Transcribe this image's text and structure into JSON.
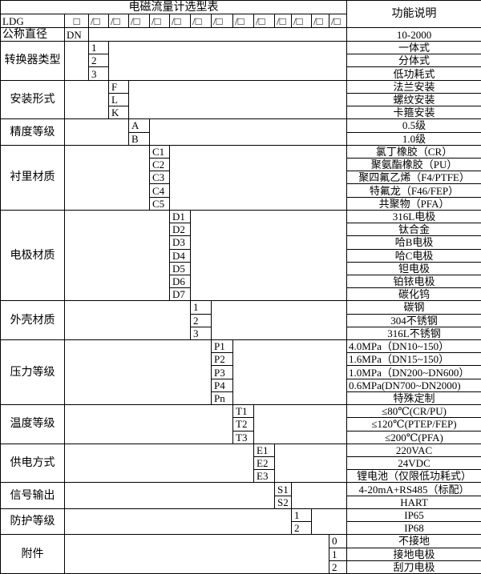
{
  "title": "电磁流量计选型表",
  "desc_header": "功能说明",
  "model_row": {
    "prefix": "LDG",
    "first_box": "□",
    "boxes": [
      "/□",
      "/□",
      "/□",
      "/□",
      "/□",
      "/□",
      "/□",
      "/□",
      "/□",
      "/□",
      "/□",
      "/□",
      "/□"
    ]
  },
  "diameter": {
    "label": "公称直径",
    "code": "DN",
    "desc": "10-2000"
  },
  "groups": [
    {
      "label": "转换器类型",
      "col": 2,
      "codes": [
        "1",
        "2",
        "3"
      ],
      "descs": [
        "一体式",
        "分体式",
        "低功耗式"
      ]
    },
    {
      "label": "安装形式",
      "col": 3,
      "codes": [
        "F",
        "L",
        "K"
      ],
      "descs": [
        "法兰安装",
        "螺纹安装",
        "卡箍安装"
      ]
    },
    {
      "label": "精度等级",
      "col": 4,
      "codes": [
        "A",
        "B"
      ],
      "descs": [
        "0.5级",
        "1.0级"
      ]
    },
    {
      "label": "衬里材质",
      "col": 5,
      "codes": [
        "C1",
        "C2",
        "C3",
        "C4",
        "C5"
      ],
      "descs": [
        "氯丁橡胶（CR）",
        "聚氨酯橡胶（PU）",
        "聚四氟乙烯（F4/PTFE）",
        "特氟龙（F46/FEP）",
        "共聚物（PFA）"
      ]
    },
    {
      "label": "电极材质",
      "col": 6,
      "codes": [
        "D1",
        "D2",
        "D3",
        "D4",
        "D5",
        "D6",
        "D7"
      ],
      "descs": [
        "316L电极",
        "钛合金",
        "哈B电极",
        "哈C电极",
        "钽电极",
        "铂铱电极",
        "碳化钨"
      ]
    },
    {
      "label": "外壳材质",
      "col": 7,
      "codes": [
        "1",
        "2",
        "3"
      ],
      "descs": [
        "碳钢",
        "304不锈钢",
        "316L不锈钢"
      ]
    },
    {
      "label": "压力等级",
      "col": 8,
      "codes": [
        "P1",
        "P2",
        "P3",
        "P4",
        "Pn"
      ],
      "descs": [
        "4.0MPa（DN10~150）",
        "1.6MPa（DN15~150）",
        "1.0MPa（DN200~DN600）",
        "0.6MPa(DN700~DN2000)",
        "特殊定制"
      ],
      "left": [
        true,
        true,
        true,
        true,
        false
      ]
    },
    {
      "label": "温度等级",
      "col": 9,
      "codes": [
        "T1",
        "T2",
        "T3"
      ],
      "descs": [
        "≤80℃(CR/PU)",
        "≤120℃(PTEP/FEP)",
        "≤200℃(PFA)"
      ]
    },
    {
      "label": "供电方式",
      "col": 10,
      "codes": [
        "E1",
        "E2",
        "E3"
      ],
      "descs": [
        "220VAC",
        "24VDC",
        "锂电池（仅限低功耗式）"
      ]
    },
    {
      "label": "信号输出",
      "col": 11,
      "codes": [
        "S1",
        "S2"
      ],
      "descs": [
        "4-20mA+RS485（标配）",
        "HART"
      ]
    },
    {
      "label": "防护等级",
      "col": 12,
      "codes": [
        "1",
        "2"
      ],
      "descs": [
        "IP65",
        "IP68"
      ]
    },
    {
      "label": "附件",
      "col": 14,
      "codes": [
        "0",
        "1",
        "2"
      ],
      "descs": [
        "不接地",
        "接地电极",
        "刮刀电极"
      ]
    }
  ]
}
